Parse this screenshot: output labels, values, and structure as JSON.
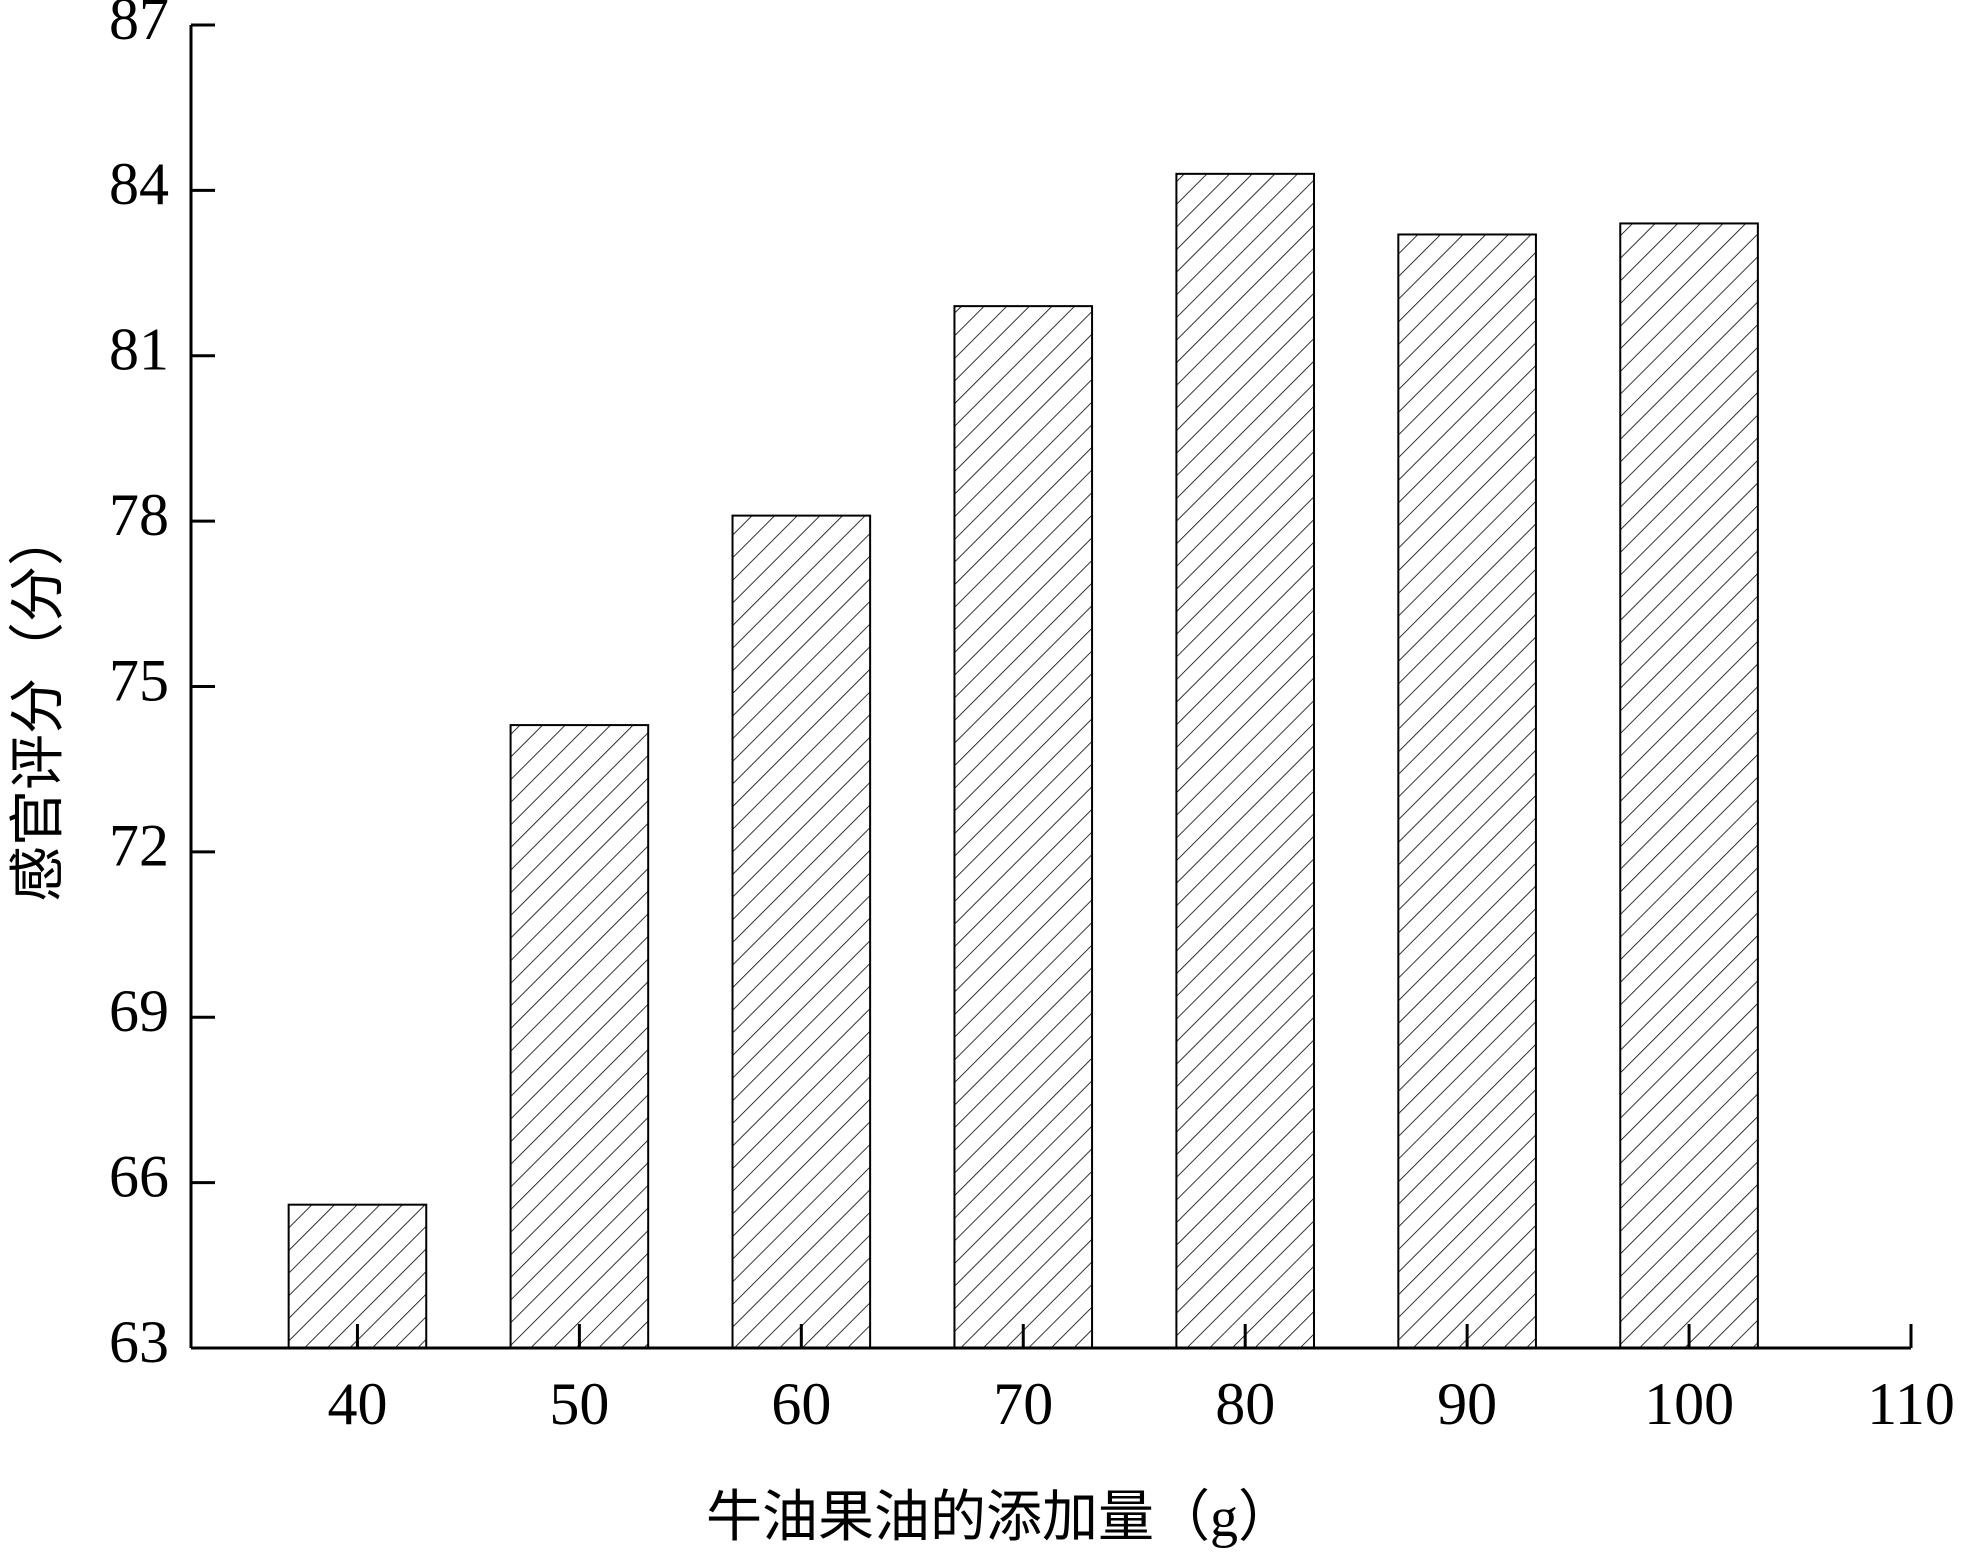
{
  "chart_data": {
    "type": "bar",
    "x_label": "牛油果油的添加量（g）",
    "y_label": "感官评分（分）",
    "x": [
      40,
      50,
      60,
      70,
      80,
      90,
      100
    ],
    "values": [
      65.6,
      74.3,
      78.1,
      81.9,
      84.3,
      83.2,
      83.4
    ],
    "color": "#000000",
    "pattern": "hatch",
    "xlim": [
      32.5,
      110
    ],
    "xticks": [
      40,
      50,
      60,
      70,
      80,
      90,
      100,
      110
    ],
    "ylim": [
      63,
      87
    ],
    "yticks": [
      63,
      66,
      69,
      72,
      75,
      78,
      81,
      84,
      87
    ],
    "grid": false
  }
}
